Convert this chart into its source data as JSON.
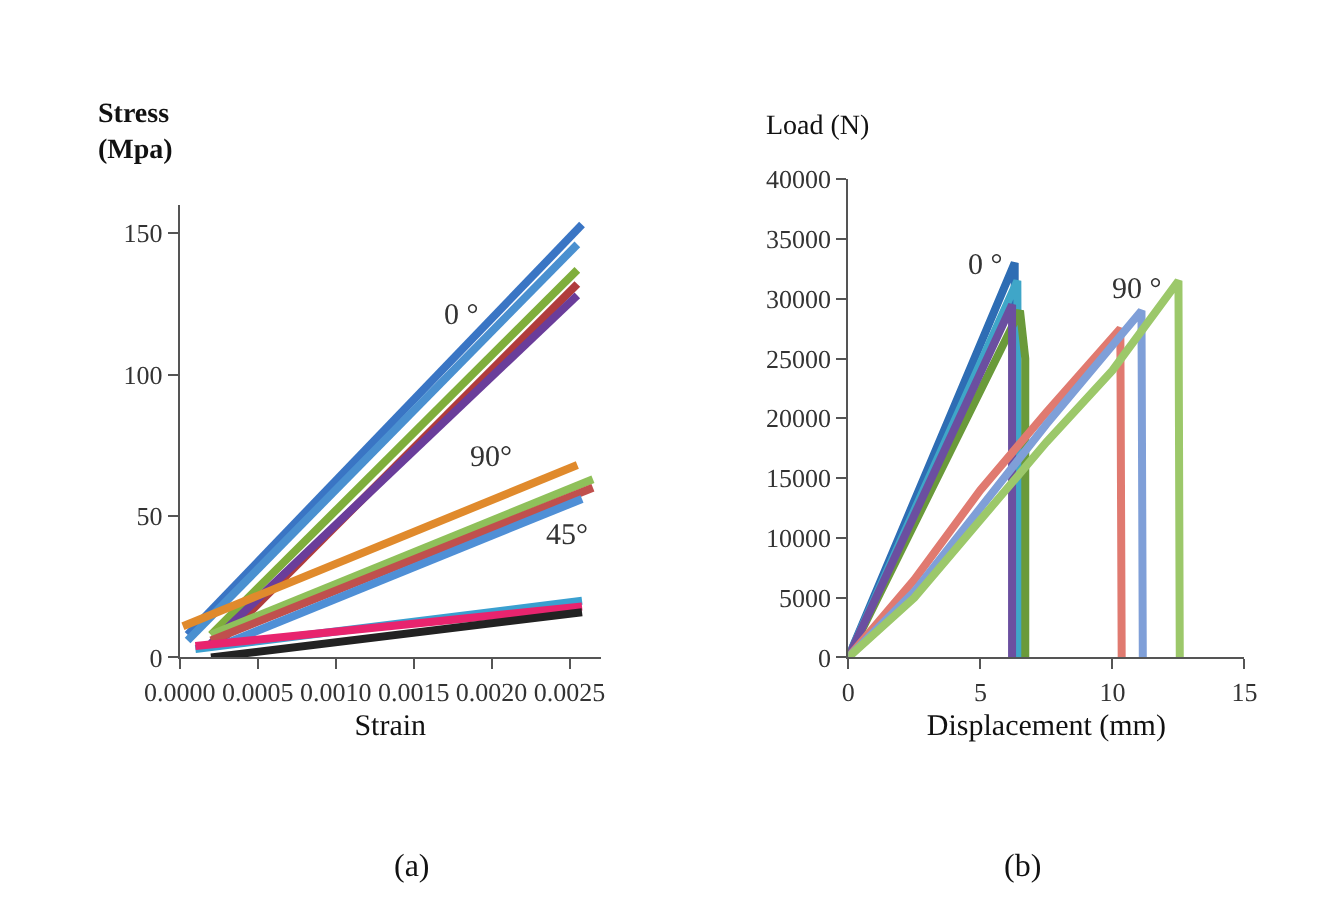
{
  "chart_data": [
    {
      "type": "line",
      "xlabel": "Strain",
      "ylabel": "Stress\n(Mpa)",
      "xlim": [
        0,
        0.0027
      ],
      "ylim": [
        0,
        160
      ],
      "xticks": [
        {
          "value": 0,
          "label": "0.0000"
        },
        {
          "value": 0.0005,
          "label": "0.0005"
        },
        {
          "value": 0.001,
          "label": "0.0010"
        },
        {
          "value": 0.0015,
          "label": "0.0015"
        },
        {
          "value": 0.002,
          "label": "0.0020"
        },
        {
          "value": 0.0025,
          "label": "0.0025"
        }
      ],
      "yticks": [
        0,
        50,
        100,
        150
      ],
      "marker": "none",
      "line_style": "solid",
      "series": [
        {
          "color": "#3a75c4",
          "x": [
            5e-05,
            0.00258
          ],
          "values": [
            8,
            153
          ]
        },
        {
          "color": "#4a90d0",
          "x": [
            5e-05,
            0.00255
          ],
          "values": [
            6,
            146
          ]
        },
        {
          "color": "#7fae3c",
          "x": [
            0.0002,
            0.00255
          ],
          "values": [
            8,
            137
          ]
        },
        {
          "color": "#b03c3c",
          "x": [
            0.00025,
            0.00255
          ],
          "values": [
            5,
            132
          ]
        },
        {
          "color": "#6a3d9a",
          "x": [
            0.0002,
            0.00255
          ],
          "values": [
            5,
            128
          ]
        },
        {
          "color": "#e08a2c",
          "x": [
            2e-05,
            0.00255
          ],
          "values": [
            11,
            68
          ]
        },
        {
          "color": "#8fc05a",
          "x": [
            0.0002,
            0.00265
          ],
          "values": [
            8,
            63
          ]
        },
        {
          "color": "#c0504d",
          "x": [
            0.0002,
            0.00265
          ],
          "values": [
            6,
            60
          ]
        },
        {
          "color": "#4f8fd6",
          "x": [
            0.0003,
            0.00258
          ],
          "values": [
            5,
            56
          ]
        },
        {
          "color": "#3aa0d0",
          "x": [
            0.0001,
            0.00258
          ],
          "values": [
            3,
            20
          ]
        },
        {
          "color": "#e8246e",
          "x": [
            0.0001,
            0.00258
          ],
          "values": [
            4,
            18
          ]
        },
        {
          "color": "#222222",
          "x": [
            0.0002,
            0.00258
          ],
          "values": [
            0,
            16
          ]
        }
      ],
      "annotations": [
        "0 °",
        "90°",
        "45°",
        "(a)"
      ]
    },
    {
      "type": "line",
      "xlabel": "Displacement (mm)",
      "ylabel": "Load (N)",
      "xlim": [
        0,
        15
      ],
      "ylim": [
        0,
        40000
      ],
      "xticks": [
        0,
        5,
        10,
        15
      ],
      "yticks": [
        0,
        5000,
        10000,
        15000,
        20000,
        25000,
        30000,
        35000,
        40000
      ],
      "marker": "none",
      "line_style": "solid",
      "series": [
        {
          "color": "#2e6db4",
          "x": [
            0,
            6.3,
            6.3
          ],
          "values": [
            0,
            33000,
            0
          ]
        },
        {
          "color": "#3fa6c8",
          "x": [
            0,
            6.4,
            6.45
          ],
          "values": [
            0,
            31500,
            0
          ]
        },
        {
          "color": "#6a9a3a",
          "x": [
            0,
            6.5,
            6.7,
            6.7
          ],
          "values": [
            0,
            29000,
            25000,
            0
          ]
        },
        {
          "color": "#6b4fa0",
          "x": [
            0,
            6.2,
            6.2
          ],
          "values": [
            0,
            29500,
            0
          ]
        },
        {
          "color": "#e07a70",
          "x": [
            0,
            2.5,
            5,
            7.5,
            10.3,
            10.35
          ],
          "values": [
            0,
            6500,
            14000,
            20500,
            27500,
            0
          ]
        },
        {
          "color": "#7f9fd8",
          "x": [
            0,
            2.5,
            5,
            7.5,
            11.1,
            11.15
          ],
          "values": [
            0,
            5500,
            12500,
            19500,
            29000,
            0
          ]
        },
        {
          "color": "#9cc86a",
          "x": [
            0,
            2.5,
            5,
            7.5,
            10,
            12.5,
            12.55
          ],
          "values": [
            0,
            5000,
            11500,
            18000,
            24000,
            31500,
            0
          ]
        }
      ],
      "annotations": [
        "0 °",
        "90 °",
        "(b)"
      ]
    }
  ]
}
